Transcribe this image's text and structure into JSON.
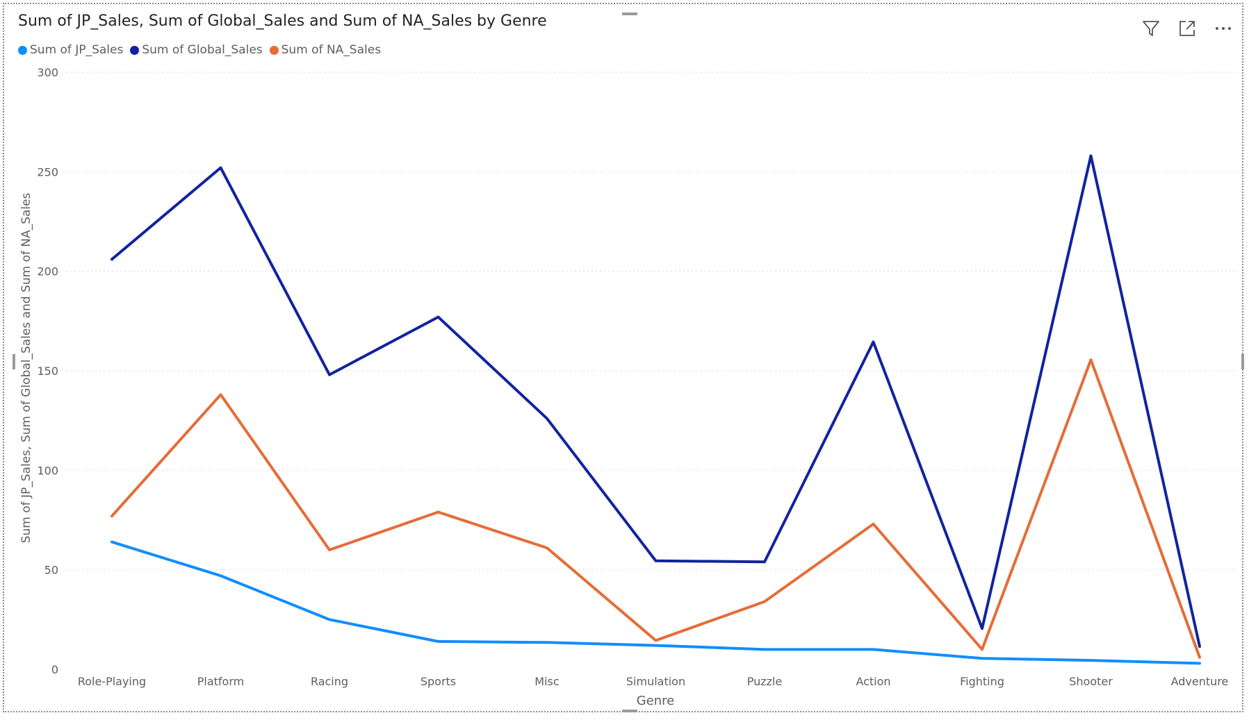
{
  "chart_data": {
    "type": "line",
    "title": "Sum of JP_Sales, Sum of Global_Sales and Sum of NA_Sales by Genre",
    "xlabel": "Genre",
    "ylabel": "Sum of JP_Sales, Sum of Global_Sales and Sum of NA_Sales",
    "ylim": [
      0,
      300
    ],
    "yticks": [
      0,
      50,
      100,
      150,
      200,
      250,
      300
    ],
    "grid": true,
    "legend_position": "top-left",
    "categories": [
      "Role-Playing",
      "Platform",
      "Racing",
      "Sports",
      "Misc",
      "Simulation",
      "Puzzle",
      "Action",
      "Fighting",
      "Shooter",
      "Adventure"
    ],
    "series": [
      {
        "name": "Sum of JP_Sales",
        "color": "#118DFF",
        "values": [
          64,
          47,
          25,
          14,
          13.5,
          12,
          10,
          10,
          5.5,
          4.5,
          3
        ]
      },
      {
        "name": "Sum of Global_Sales",
        "color": "#12239E",
        "values": [
          206,
          252,
          148,
          177,
          126,
          54.5,
          54,
          164.5,
          20.5,
          258,
          11.5
        ]
      },
      {
        "name": "Sum of NA_Sales",
        "color": "#E66C37",
        "values": [
          77,
          138,
          60,
          79,
          61,
          14.5,
          34,
          73,
          10,
          155.5,
          6
        ]
      }
    ]
  },
  "toolbar": {
    "filter_icon": "filter-icon",
    "focus_icon": "focus-mode-icon",
    "more_icon": "more-options-icon"
  }
}
